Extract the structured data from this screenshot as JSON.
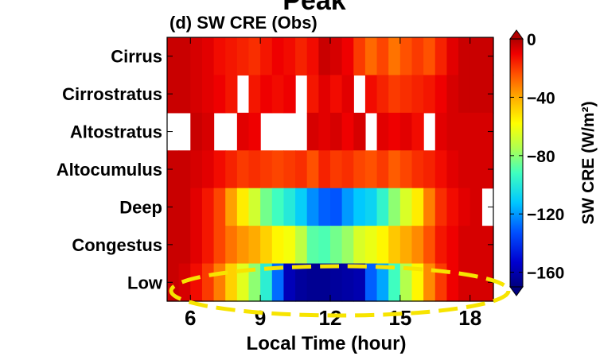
{
  "chart_data": {
    "type": "heatmap",
    "header_text": "Peak",
    "title": "(d) SW CRE (Obs)",
    "xlabel": "Local Time (hour)",
    "xlim": [
      5,
      19
    ],
    "xticks": [
      6,
      9,
      12,
      15,
      18
    ],
    "x": [
      5.25,
      5.75,
      6.25,
      6.75,
      7.25,
      7.75,
      8.25,
      8.75,
      9.25,
      9.75,
      10.25,
      10.75,
      11.25,
      11.75,
      12.25,
      12.75,
      13.25,
      13.75,
      14.25,
      14.75,
      15.25,
      15.75,
      16.25,
      16.75,
      17.25,
      17.75,
      18.25,
      18.75
    ],
    "categories": [
      "Cirrus",
      "Cirrostratus",
      "Altostratus",
      "Altocumulus",
      "Deep",
      "Congestus",
      "Low"
    ],
    "values": [
      [
        -4,
        -4,
        -6,
        -8,
        -12,
        -14,
        -16,
        -18,
        -14,
        -10,
        -12,
        -16,
        -12,
        -4,
        -6,
        -10,
        -20,
        -28,
        -22,
        -30,
        -24,
        -20,
        -24,
        -16,
        -8,
        -4,
        -4,
        -4
      ],
      [
        -4,
        -4,
        -6,
        -8,
        -10,
        -14,
        null,
        -14,
        -10,
        -12,
        -10,
        null,
        -14,
        -8,
        -12,
        -8,
        null,
        -12,
        -16,
        -20,
        -18,
        -16,
        -14,
        -10,
        -6,
        -4,
        -4,
        -4
      ],
      [
        null,
        null,
        -4,
        -6,
        null,
        null,
        -8,
        -10,
        null,
        null,
        null,
        null,
        -6,
        -8,
        -6,
        -10,
        -6,
        null,
        -8,
        -10,
        -8,
        -12,
        null,
        -8,
        -6,
        -6,
        -6,
        -6
      ],
      [
        -4,
        -4,
        -6,
        -8,
        -12,
        -16,
        -20,
        -18,
        -20,
        -22,
        -20,
        -18,
        -24,
        -16,
        -20,
        -18,
        -22,
        -24,
        -20,
        -26,
        -22,
        -18,
        -16,
        -12,
        -8,
        -6,
        -6,
        -6
      ],
      [
        -4,
        -4,
        -8,
        -14,
        -22,
        -38,
        -54,
        -68,
        -84,
        -92,
        -100,
        -110,
        -122,
        -130,
        -132,
        -120,
        -112,
        -108,
        -96,
        -80,
        -66,
        -54,
        -32,
        -18,
        -12,
        -8,
        -6,
        null
      ],
      [
        -4,
        -4,
        -8,
        -14,
        -22,
        -30,
        -36,
        -40,
        -48,
        -56,
        -60,
        -72,
        -88,
        -90,
        -84,
        -78,
        -66,
        -62,
        -56,
        -46,
        -40,
        -34,
        -24,
        -14,
        -10,
        -6,
        -6,
        -6
      ],
      [
        -4,
        -6,
        -12,
        -20,
        -32,
        -48,
        -64,
        -80,
        -98,
        -128,
        -158,
        -164,
        -166,
        -166,
        -164,
        -162,
        -160,
        -130,
        -118,
        -92,
        -74,
        -56,
        -34,
        -20,
        -10,
        -6,
        -6,
        -6
      ]
    ],
    "colorbar": {
      "label": "SW CRE (W/m²)",
      "ticks": [
        "0",
        "−40",
        "−80",
        "−120",
        "−160"
      ],
      "range": [
        -170,
        0
      ]
    },
    "annotation": "yellow dashed ellipse around Low row",
    "annotation_color": "#f7e400",
    "header_color": "#ff0000"
  }
}
